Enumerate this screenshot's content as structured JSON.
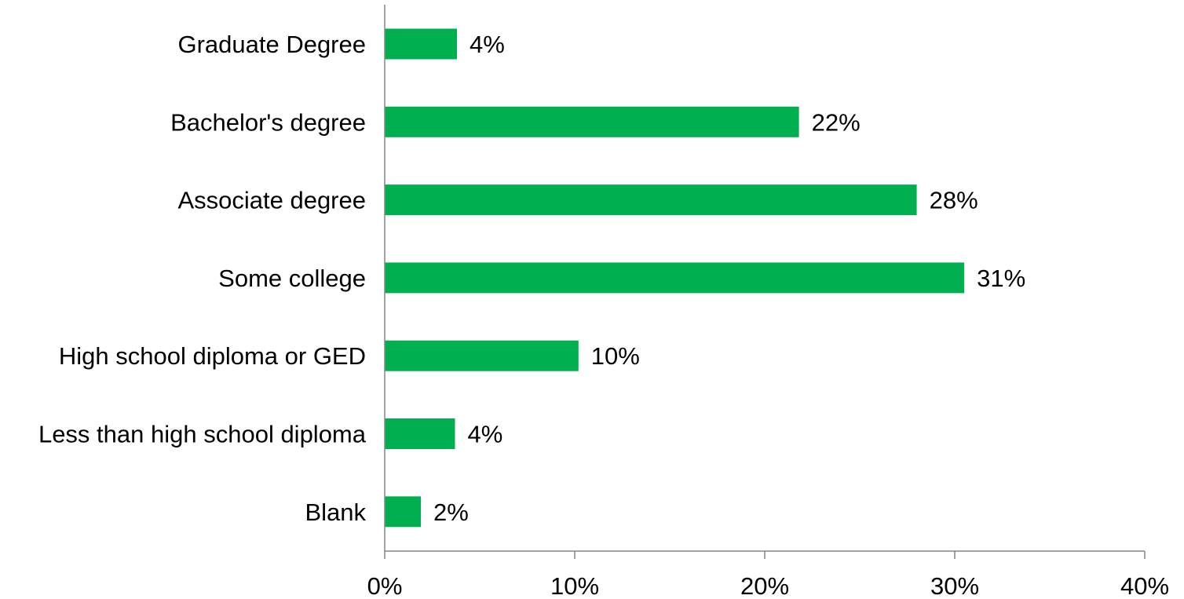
{
  "chart_data": {
    "type": "bar",
    "orientation": "horizontal",
    "title": "",
    "xlabel": "",
    "ylabel": "",
    "categories": [
      "Graduate Degree",
      "Bachelor's degree",
      "Associate degree",
      "Some college",
      "High school diploma or GED",
      "Less than high school diploma",
      "Blank"
    ],
    "values": [
      0.038,
      0.218,
      0.28,
      0.305,
      0.102,
      0.037,
      0.019
    ],
    "data_labels": [
      "4%",
      "22%",
      "28%",
      "31%",
      "10%",
      "4%",
      "2%"
    ],
    "xlim": [
      0,
      0.4
    ],
    "x_ticks": [
      0,
      0.1,
      0.2,
      0.3,
      0.4
    ],
    "x_tick_labels": [
      "0%",
      "10%",
      "20%",
      "30%",
      "40%"
    ],
    "bar_color": "#00b050",
    "axis_color": "#868686",
    "grid": false,
    "legend": "none"
  }
}
